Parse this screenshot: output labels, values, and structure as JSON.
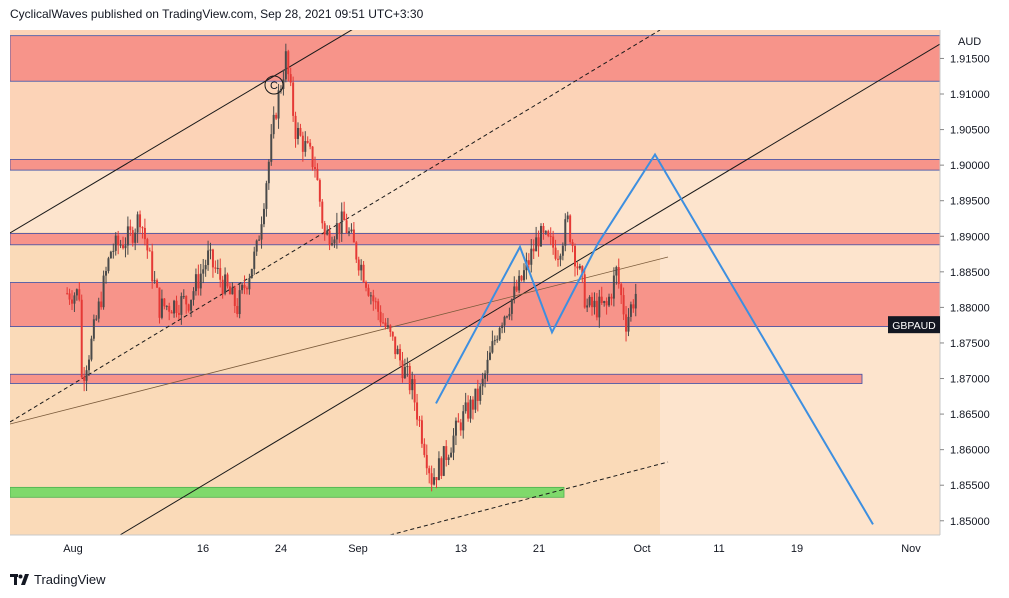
{
  "header": {
    "publish_line": "CyclicalWaves published on TradingView.com, Sep 28, 2021 09:51 UTC+3:30"
  },
  "footer": {
    "brand": "TradingView",
    "logo_icon": "tradingview-logo-icon"
  },
  "chart_data": {
    "type": "candlestick",
    "symbol_label": "GBPAUD",
    "currency_label": "AUD",
    "y_axis": {
      "range": [
        1.848,
        1.919
      ],
      "ticks": [
        "1.91500",
        "1.91000",
        "1.90500",
        "1.90000",
        "1.89500",
        "1.89000",
        "1.88500",
        "1.88000",
        "1.87500",
        "1.87000",
        "1.86500",
        "1.86000",
        "1.85500",
        "1.85000"
      ]
    },
    "x_axis": {
      "ticks": [
        "Aug",
        "16",
        "24",
        "Sep",
        "13",
        "21",
        "Oct",
        "11",
        "19",
        "Nov"
      ]
    },
    "last_price": 1.8775,
    "colors": {
      "up": "#4a4a4a",
      "down": "#e53935",
      "pattern": "#3d8fe0",
      "zone_strong": "#f7948a",
      "zone_light": "#fbbf9e",
      "support_green": "#7fd96b",
      "line_blue": "#3b4fa8",
      "background_peach": "#fde4cd"
    },
    "zones": [
      {
        "from": 1.9118,
        "to": 1.9182
      },
      {
        "from": 1.8993,
        "to": 1.9008
      },
      {
        "from": 1.8888,
        "to": 1.8904
      },
      {
        "from": 1.8773,
        "to": 1.8835
      },
      {
        "from": 1.8693,
        "to": 1.8706
      }
    ],
    "support_zone": {
      "from": 1.8533,
      "to": 1.8547
    },
    "annotation": "C",
    "wave_path_price": [
      1.8665,
      1.8885,
      1.8765,
      1.889,
      1.9015,
      1.8495
    ]
  }
}
